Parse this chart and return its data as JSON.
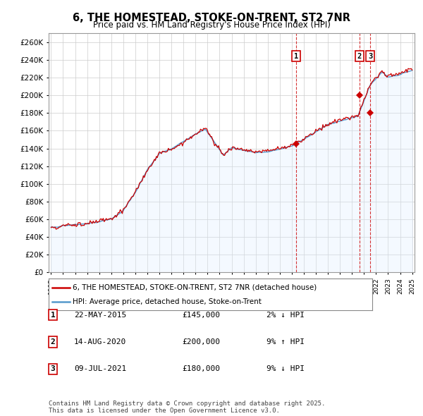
{
  "title": "6, THE HOMESTEAD, STOKE-ON-TRENT, ST2 7NR",
  "subtitle": "Price paid vs. HM Land Registry's House Price Index (HPI)",
  "ylim": [
    0,
    270000
  ],
  "yticks": [
    0,
    20000,
    40000,
    60000,
    80000,
    100000,
    120000,
    140000,
    160000,
    180000,
    200000,
    220000,
    240000,
    260000
  ],
  "hpi_color": "#5599cc",
  "hpi_fill_color": "#ddeeff",
  "price_color": "#cc0000",
  "vline_color": "#cc0000",
  "background_color": "#ffffff",
  "grid_color": "#cccccc",
  "transactions": [
    {
      "label": "1",
      "date": "22-MAY-2015",
      "price": 145000,
      "year": 2015.37,
      "pct": "2%",
      "dir": "↓"
    },
    {
      "label": "2",
      "date": "14-AUG-2020",
      "price": 200000,
      "year": 2020.62,
      "pct": "9%",
      "dir": "↑"
    },
    {
      "label": "3",
      "date": "09-JUL-2021",
      "price": 180000,
      "year": 2021.52,
      "pct": "9%",
      "dir": "↓"
    }
  ],
  "legend_line1": "6, THE HOMESTEAD, STOKE-ON-TRENT, ST2 7NR (detached house)",
  "legend_line2": "HPI: Average price, detached house, Stoke-on-Trent",
  "footer": "Contains HM Land Registry data © Crown copyright and database right 2025.\nThis data is licensed under the Open Government Licence v3.0.",
  "x_start_year": 1995,
  "x_end_year": 2025
}
